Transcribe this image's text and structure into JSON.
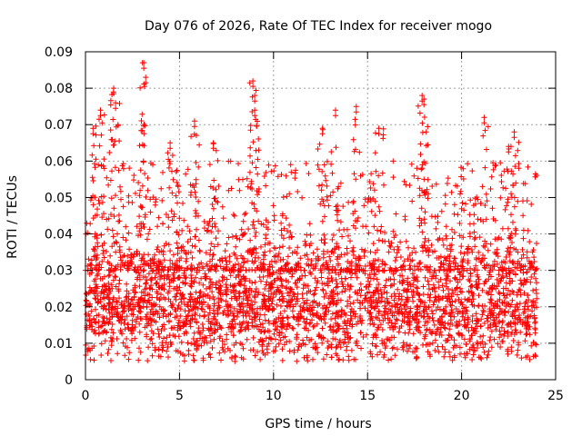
{
  "chart_data": {
    "type": "scatter",
    "title": "Day 076 of 2026, Rate Of TEC Index for receiver mogo",
    "xlabel": "GPS time / hours",
    "ylabel": "ROTI / TECUs",
    "xlim": [
      0,
      25
    ],
    "ylim": [
      0,
      0.09
    ],
    "xticks": [
      0,
      5,
      10,
      15,
      20,
      25
    ],
    "yticks": [
      0,
      0.01,
      0.02,
      0.03,
      0.04,
      0.05,
      0.06,
      0.07,
      0.08,
      0.09
    ],
    "xtick_labels": [
      "0",
      "5",
      "10",
      "15",
      "20",
      "25"
    ],
    "ytick_labels": [
      "0",
      "0.01",
      "0.02",
      "0.03",
      "0.04",
      "0.05",
      "0.06",
      "0.07",
      "0.08",
      "0.09"
    ],
    "grid": true,
    "marker": "+",
    "series_color": "#ff0000",
    "series": [
      {
        "name": "ROTI",
        "x_range": [
          0,
          24
        ],
        "typical_range": [
          0.01,
          0.03
        ],
        "noise_floor": 0.005,
        "peaks": [
          {
            "x": 0.4,
            "y": 0.069
          },
          {
            "x": 0.8,
            "y": 0.074
          },
          {
            "x": 1.5,
            "y": 0.08
          },
          {
            "x": 1.6,
            "y": 0.076
          },
          {
            "x": 3.1,
            "y": 0.087
          },
          {
            "x": 3.2,
            "y": 0.083
          },
          {
            "x": 4.5,
            "y": 0.065
          },
          {
            "x": 5.8,
            "y": 0.071
          },
          {
            "x": 6.8,
            "y": 0.065
          },
          {
            "x": 8.9,
            "y": 0.082
          },
          {
            "x": 9.0,
            "y": 0.078
          },
          {
            "x": 9.0,
            "y": 0.074
          },
          {
            "x": 12.6,
            "y": 0.069
          },
          {
            "x": 13.3,
            "y": 0.074
          },
          {
            "x": 14.4,
            "y": 0.075
          },
          {
            "x": 15.6,
            "y": 0.069
          },
          {
            "x": 17.9,
            "y": 0.078
          },
          {
            "x": 18.0,
            "y": 0.077
          },
          {
            "x": 21.2,
            "y": 0.072
          },
          {
            "x": 22.8,
            "y": 0.068
          },
          {
            "x": 22.5,
            "y": 0.064
          }
        ]
      }
    ]
  }
}
